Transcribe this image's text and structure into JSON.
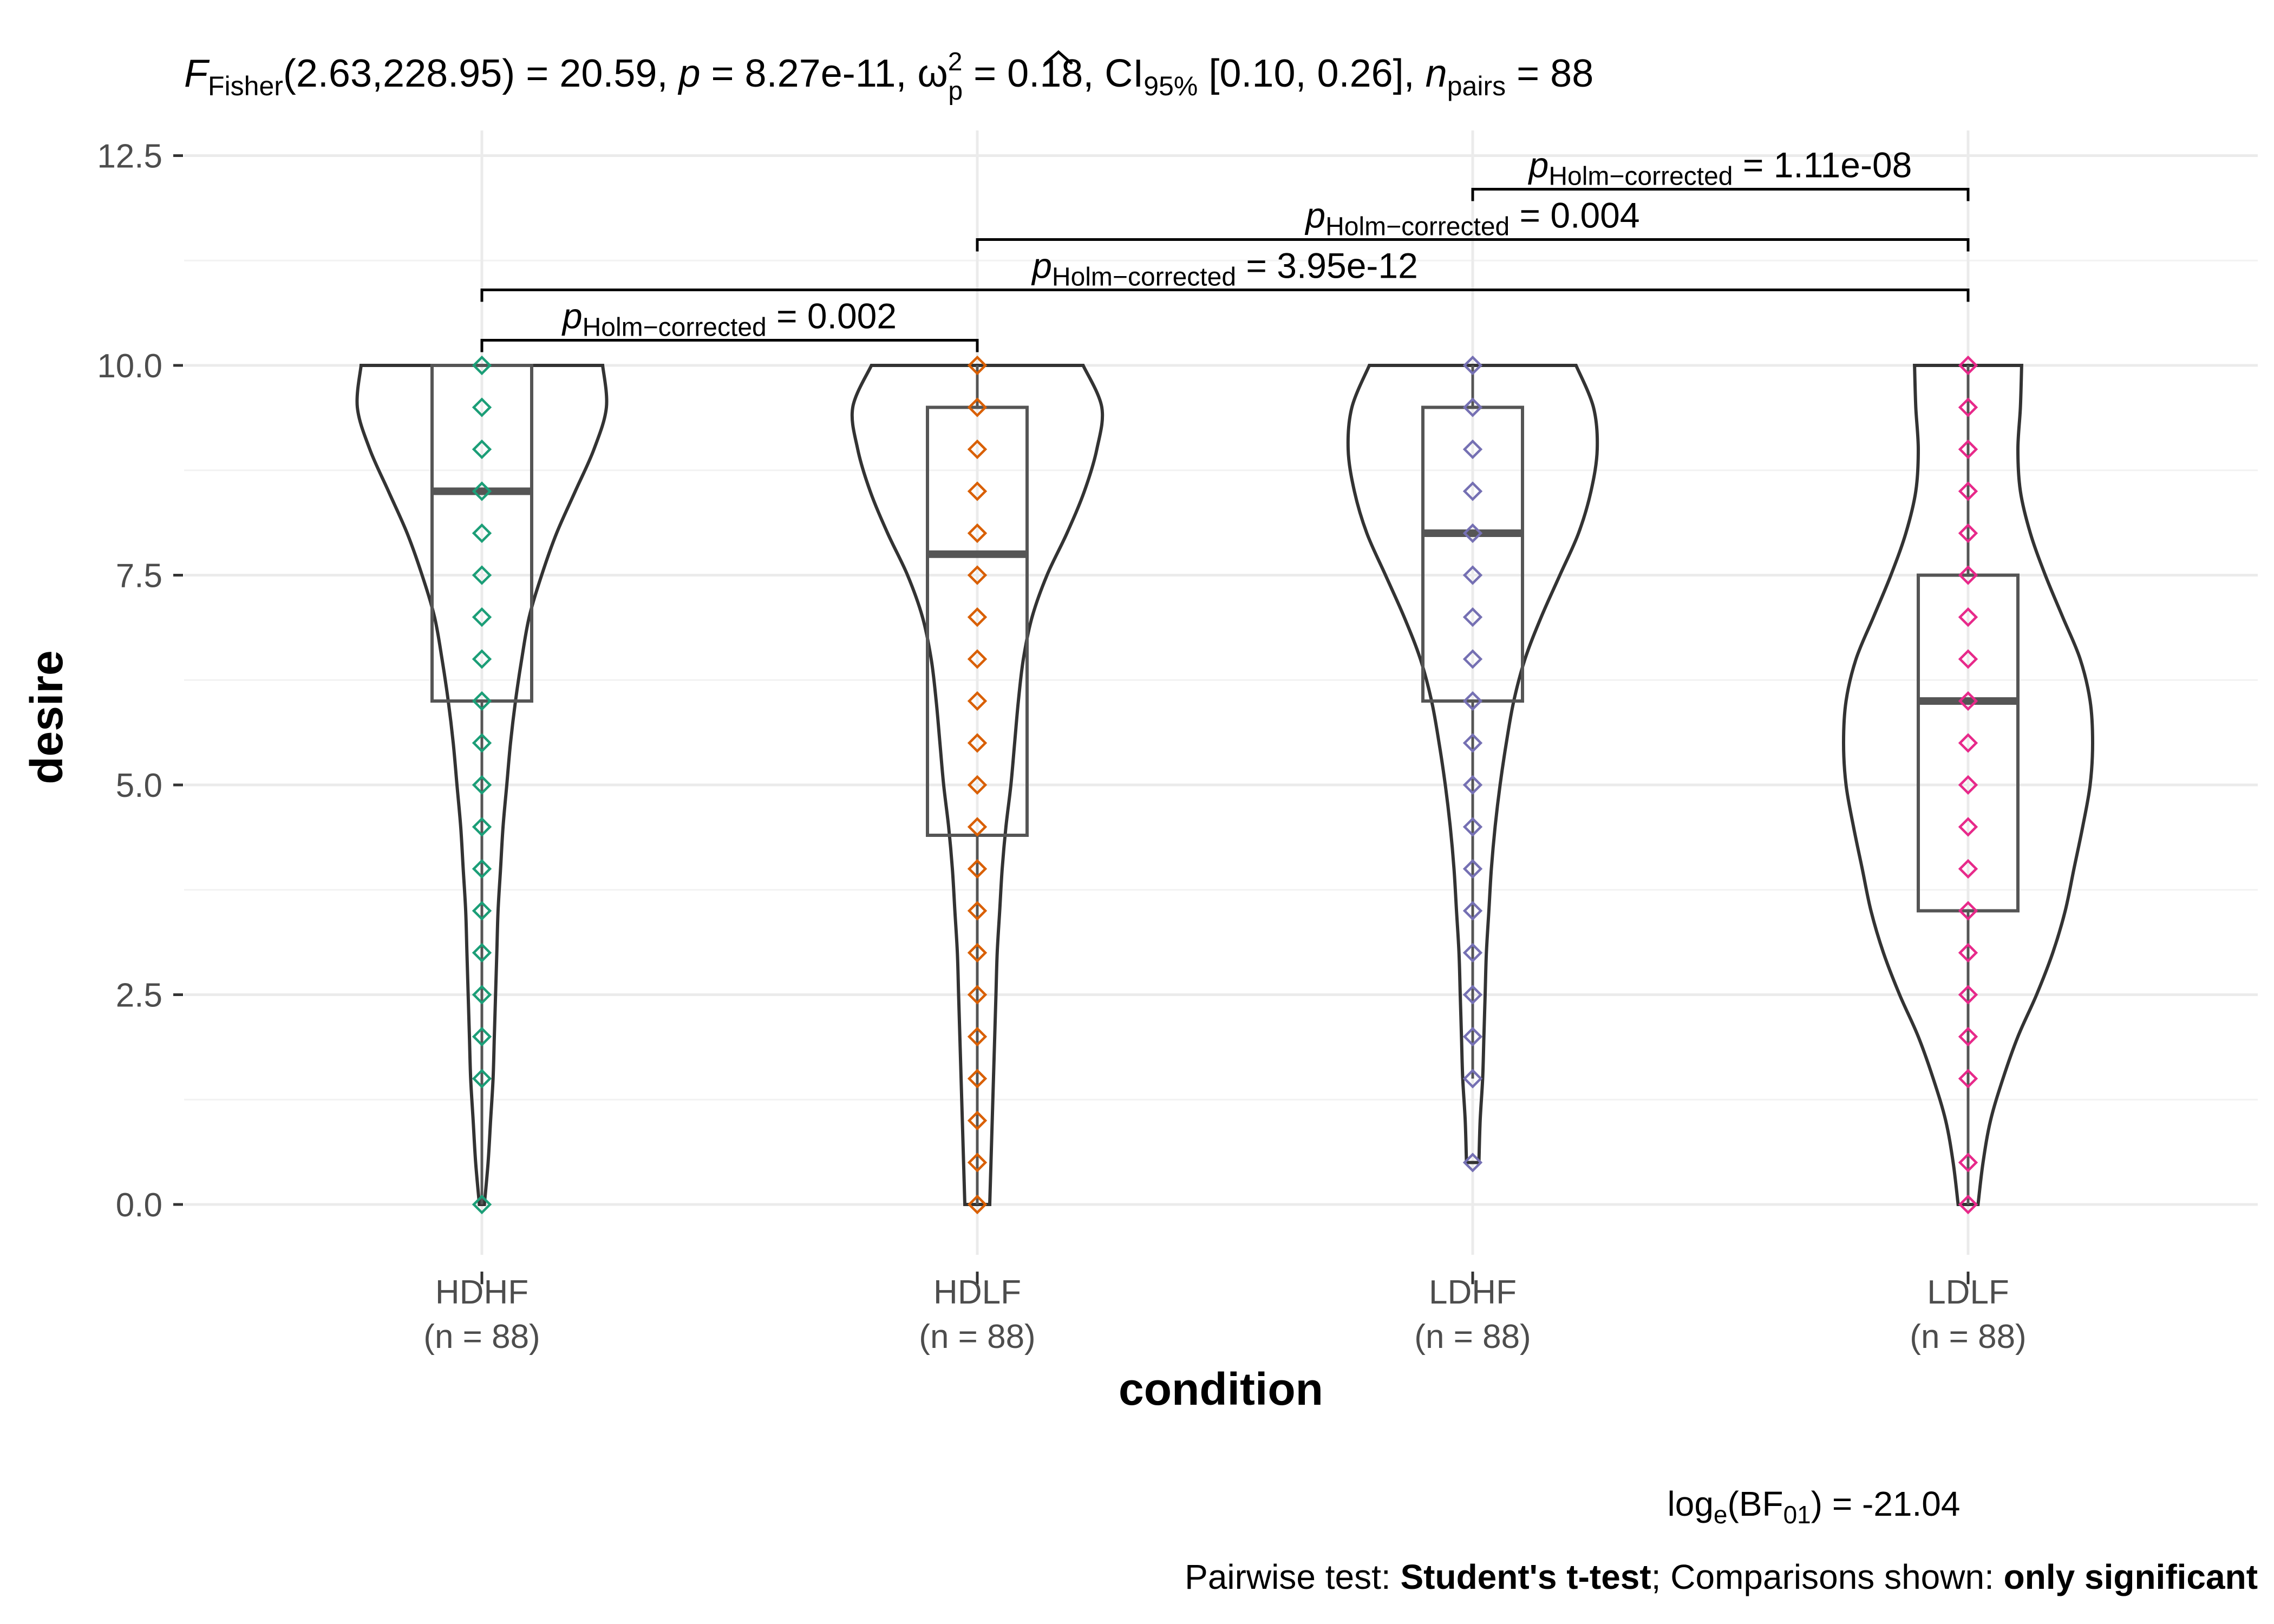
{
  "chart_data": {
    "type": "violin-box",
    "subtitle": {
      "stat_symbol": "F",
      "stat_sub": "Fisher",
      "stat_args": "(2.63,228.95) = 20.59, ",
      "p_symbol": "p",
      "p_value": " = 8.27e-11, ",
      "effect_symbol": "ω",
      "effect_sup": "2",
      "effect_sub": "p",
      "effect_value": " = 0.18, CI",
      "ci_sub": "95%",
      "ci_value": " [0.10, 0.26], ",
      "n_symbol": "n",
      "n_sub": "pairs",
      "n_value": " = 88"
    },
    "xlabel": "condition",
    "ylabel": "desire",
    "ylim": [
      0,
      12.5
    ],
    "yticks": [
      "0.0",
      "2.5",
      "5.0",
      "7.5",
      "10.0",
      "12.5"
    ],
    "ytick_values": [
      0,
      2.5,
      5,
      7.5,
      10,
      12.5
    ],
    "grid": true,
    "categories": [
      {
        "name": "HDHF",
        "n_label": "(n = 88)",
        "color": "#1b9e77",
        "q1": 6,
        "median": 8.5,
        "q3": 10,
        "whisker_low": 0,
        "whisker_high": 10,
        "points": [
          0,
          1.5,
          2,
          2.5,
          3,
          3.5,
          4,
          4.5,
          5,
          5.5,
          6,
          6.5,
          7,
          7.5,
          8,
          8.5,
          9,
          9.5,
          10
        ],
        "density": [
          [
            0,
            0.02
          ],
          [
            0.5,
            0.05
          ],
          [
            1,
            0.07
          ],
          [
            1.5,
            0.09
          ],
          [
            2,
            0.1
          ],
          [
            2.5,
            0.11
          ],
          [
            3,
            0.12
          ],
          [
            3.5,
            0.13
          ],
          [
            4,
            0.15
          ],
          [
            4.5,
            0.17
          ],
          [
            5,
            0.2
          ],
          [
            5.5,
            0.23
          ],
          [
            6,
            0.27
          ],
          [
            6.5,
            0.32
          ],
          [
            7,
            0.38
          ],
          [
            7.5,
            0.48
          ],
          [
            8,
            0.6
          ],
          [
            8.5,
            0.75
          ],
          [
            9,
            0.9
          ],
          [
            9.5,
            1.0
          ],
          [
            10,
            0.97
          ]
        ]
      },
      {
        "name": "HDLF",
        "n_label": "(n = 88)",
        "color": "#d95f02",
        "q1": 4.4,
        "median": 7.75,
        "q3": 9.5,
        "whisker_low": 0,
        "whisker_high": 10,
        "points": [
          0,
          0.5,
          1,
          1.5,
          2,
          2.5,
          3,
          3.5,
          4,
          4.5,
          5,
          5.5,
          6,
          6.5,
          7,
          7.5,
          8,
          8.5,
          9,
          9.5,
          10
        ],
        "density": [
          [
            0,
            0.1
          ],
          [
            0.5,
            0.11
          ],
          [
            1,
            0.12
          ],
          [
            1.5,
            0.13
          ],
          [
            2,
            0.14
          ],
          [
            2.5,
            0.15
          ],
          [
            3,
            0.16
          ],
          [
            3.5,
            0.18
          ],
          [
            4,
            0.2
          ],
          [
            4.5,
            0.23
          ],
          [
            5,
            0.27
          ],
          [
            5.5,
            0.3
          ],
          [
            6,
            0.33
          ],
          [
            6.5,
            0.37
          ],
          [
            7,
            0.44
          ],
          [
            7.5,
            0.56
          ],
          [
            8,
            0.72
          ],
          [
            8.5,
            0.86
          ],
          [
            9,
            0.96
          ],
          [
            9.5,
            1.0
          ],
          [
            10,
            0.85
          ]
        ]
      },
      {
        "name": "LDHF",
        "n_label": "(n = 88)",
        "color": "#7570b3",
        "q1": 6,
        "median": 8,
        "q3": 9.5,
        "whisker_low": 1.5,
        "whisker_high": 10,
        "points": [
          0.5,
          1.5,
          2,
          2.5,
          3,
          3.5,
          4,
          4.5,
          5,
          5.5,
          6,
          6.5,
          7,
          7.5,
          8,
          8.5,
          9,
          9.5,
          10
        ],
        "density": [
          [
            0.5,
            0.05
          ],
          [
            1,
            0.06
          ],
          [
            1.5,
            0.08
          ],
          [
            2,
            0.09
          ],
          [
            2.5,
            0.1
          ],
          [
            3,
            0.11
          ],
          [
            3.5,
            0.13
          ],
          [
            4,
            0.15
          ],
          [
            4.5,
            0.18
          ],
          [
            5,
            0.22
          ],
          [
            5.5,
            0.27
          ],
          [
            6,
            0.33
          ],
          [
            6.5,
            0.42
          ],
          [
            7,
            0.55
          ],
          [
            7.5,
            0.7
          ],
          [
            8,
            0.85
          ],
          [
            8.5,
            0.95
          ],
          [
            9,
            1.0
          ],
          [
            9.5,
            0.97
          ],
          [
            10,
            0.83
          ]
        ]
      },
      {
        "name": "LDLF",
        "n_label": "(n = 88)",
        "color": "#e7298a",
        "q1": 3.5,
        "median": 6,
        "q3": 7.5,
        "whisker_low": 0,
        "whisker_high": 10,
        "points": [
          0,
          0.5,
          1.5,
          2,
          2.5,
          3,
          3.5,
          4,
          4.5,
          5,
          5.5,
          6,
          6.5,
          7,
          7.5,
          8,
          8.5,
          9,
          9.5,
          10
        ],
        "density": [
          [
            0,
            0.08
          ],
          [
            0.5,
            0.12
          ],
          [
            1,
            0.18
          ],
          [
            1.5,
            0.28
          ],
          [
            2,
            0.4
          ],
          [
            2.5,
            0.55
          ],
          [
            3,
            0.68
          ],
          [
            3.5,
            0.78
          ],
          [
            4,
            0.85
          ],
          [
            4.5,
            0.92
          ],
          [
            5,
            0.98
          ],
          [
            5.5,
            1.0
          ],
          [
            6,
            0.98
          ],
          [
            6.5,
            0.9
          ],
          [
            7,
            0.76
          ],
          [
            7.5,
            0.62
          ],
          [
            8,
            0.5
          ],
          [
            8.5,
            0.42
          ],
          [
            9,
            0.4
          ],
          [
            9.5,
            0.42
          ],
          [
            10,
            0.43
          ]
        ]
      }
    ],
    "comparisons": [
      {
        "from": "HDHF",
        "to": "HDLF",
        "y": 10.3,
        "label_symbol": "p",
        "label_sub": "Holm−corrected",
        "label_value": " = 0.002"
      },
      {
        "from": "HDHF",
        "to": "LDLF",
        "y": 10.9,
        "label_symbol": "p",
        "label_sub": "Holm−corrected",
        "label_value": " = 3.95e-12"
      },
      {
        "from": "HDLF",
        "to": "LDLF",
        "y": 11.5,
        "label_symbol": "p",
        "label_sub": "Holm−corrected",
        "label_value": " = 0.004"
      },
      {
        "from": "LDHF",
        "to": "LDLF",
        "y": 12.1,
        "label_symbol": "p",
        "label_sub": "Holm−corrected",
        "label_value": " = 1.11e-08"
      }
    ],
    "caption_bf": {
      "prefix": "log",
      "prefix_sub": "e",
      "mid": "(BF",
      "mid_sub": "01",
      "suffix": ") = -21.04"
    },
    "caption_test": {
      "t1": "Pairwise test: ",
      "t2": "Student's t-test",
      "t3": "; Comparisons shown: ",
      "t4": "only significant"
    }
  }
}
